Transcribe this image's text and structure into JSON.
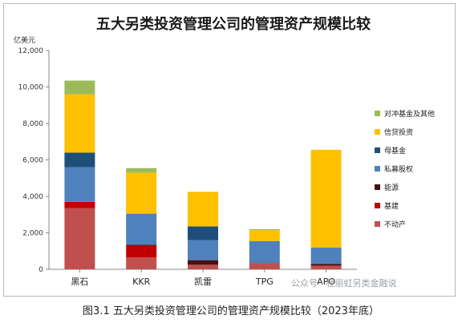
{
  "chart_data": {
    "type": "bar",
    "stacked": true,
    "title": "五大另类投资管理公司的管理资产规模比较",
    "ylabel": "亿美元",
    "ylim": [
      0,
      12000
    ],
    "yticks": [
      "0",
      "2,000",
      "4,000",
      "6,000",
      "8,000",
      "10,000",
      "12,000"
    ],
    "ytick_values": [
      0,
      2000,
      4000,
      6000,
      8000,
      10000,
      12000
    ],
    "categories": [
      "黑石",
      "KKR",
      "凯雷",
      "TPG",
      "APO"
    ],
    "legend_position": "right",
    "grid": false,
    "series": [
      {
        "name": "不动产",
        "color": "#c0504d",
        "values": [
          3350,
          650,
          250,
          350,
          200
        ]
      },
      {
        "name": "基建",
        "color": "#c00000",
        "values": [
          350,
          650,
          0,
          0,
          0
        ]
      },
      {
        "name": "能源",
        "color": "#4a1010",
        "values": [
          0,
          50,
          250,
          0,
          100
        ]
      },
      {
        "name": "私募股权",
        "color": "#4f81bd",
        "values": [
          1900,
          1700,
          1100,
          1200,
          900
        ]
      },
      {
        "name": "母基金",
        "color": "#1f4e79",
        "values": [
          800,
          0,
          750,
          0,
          0
        ]
      },
      {
        "name": "信贷投资",
        "color": "#ffc000",
        "values": [
          3200,
          2250,
          1900,
          600,
          5350
        ]
      },
      {
        "name": "对冲基金及其他",
        "color": "#9bbb59",
        "values": [
          750,
          250,
          0,
          50,
          0
        ]
      }
    ]
  },
  "watermark": "公众号 · 杜丽虹另类金融说",
  "caption": "图3.1 五大另类投资管理公司的管理资产规模比较（2023年底）"
}
